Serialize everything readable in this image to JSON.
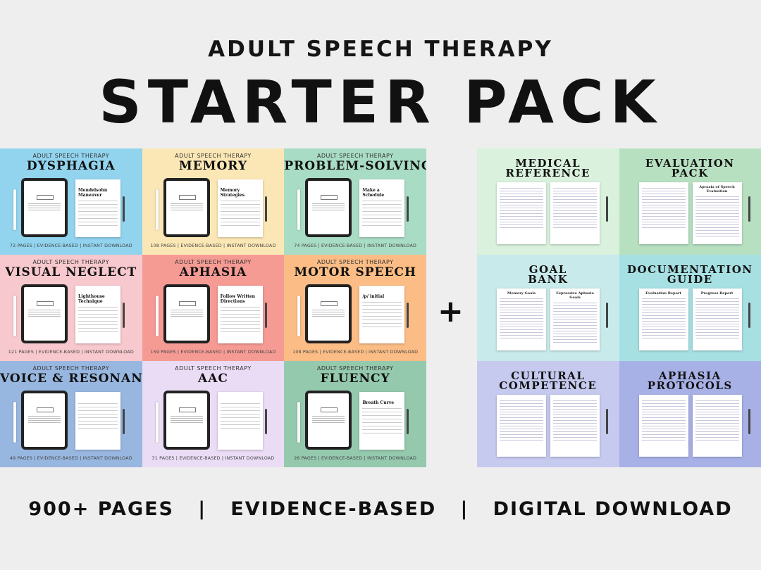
{
  "header": {
    "line1": "ADULT SPEECH THERAPY",
    "line2": "STARTER PACK"
  },
  "left_tiles": [
    {
      "subtitle": "ADULT SPEECH THERAPY",
      "title": "DYSPHAGIA",
      "doc_title": "Mendelsohn Maneuver",
      "footer": "72 PAGES  |  EVIDENCE-BASED  |  INSTANT DOWNLOAD",
      "color": "#92d3ee"
    },
    {
      "subtitle": "ADULT SPEECH THERAPY",
      "title": "MEMORY",
      "doc_title": "Memory Strategies",
      "footer": "108 PAGES  |  EVIDENCE-BASED  |  INSTANT DOWNLOAD",
      "color": "#fbe7b5"
    },
    {
      "subtitle": "ADULT SPEECH THERAPY",
      "title": "PROBLEM-SOLVING",
      "doc_title": "Make a Schedule",
      "footer": "74 PAGES  |  EVIDENCE-BASED  |  INSTANT DOWNLOAD",
      "color": "#a9dcc5"
    },
    {
      "subtitle": "ADULT SPEECH THERAPY",
      "title": "VISUAL NEGLECT",
      "doc_title": "Lighthouse Technique",
      "footer": "121 PAGES  |  EVIDENCE-BASED  |  INSTANT DOWNLOAD",
      "color": "#f7c8cd"
    },
    {
      "subtitle": "ADULT SPEECH THERAPY",
      "title": "APHASIA",
      "doc_title": "Follow Written Directions",
      "footer": "159 PAGES  |  EVIDENCE-BASED  |  INSTANT DOWNLOAD",
      "color": "#f59b94"
    },
    {
      "subtitle": "ADULT SPEECH THERAPY",
      "title": "MOTOR SPEECH",
      "doc_title": "/p/ initial",
      "footer": "108 PAGES  |  EVIDENCE-BASED  |  INSTANT DOWNLOAD",
      "color": "#fbbd85"
    },
    {
      "subtitle": "ADULT SPEECH THERAPY",
      "title": "VOICE & RESONANCE",
      "doc_title": "",
      "footer": "49 PAGES  |  EVIDENCE-BASED  |  INSTANT DOWNLOAD",
      "color": "#98b7e0"
    },
    {
      "subtitle": "ADULT SPEECH THERAPY",
      "title": "AAC",
      "doc_title": "",
      "footer": "31 PAGES  |  EVIDENCE-BASED  |  INSTANT DOWNLOAD",
      "color": "#eadcf5"
    },
    {
      "subtitle": "ADULT SPEECH THERAPY",
      "title": "FLUENCY",
      "doc_title": "Breath Curve",
      "footer": "26 PAGES  |  EVIDENCE-BASED  |  INSTANT DOWNLOAD",
      "color": "#95c9ae"
    }
  ],
  "plus": "+",
  "right_tiles": [
    {
      "title": "MEDICAL REFERENCE",
      "docs": [
        "",
        ""
      ],
      "color": "#d9f1dd"
    },
    {
      "title": "EVALUATION PACK",
      "docs": [
        "",
        "Apraxia of Speech Evaluation"
      ],
      "color": "#b7e0c1"
    },
    {
      "title": "GOAL BANK",
      "docs": [
        "Memory Goals",
        "Expressive Aphasia Goals"
      ],
      "color": "#c9eaeb"
    },
    {
      "title": "DOCUMENTATION GUIDE",
      "docs": [
        "Evaluation Report",
        "Progress Report"
      ],
      "color": "#a7e0e3"
    },
    {
      "title": "CULTURAL COMPETENCE",
      "docs": [
        "",
        ""
      ],
      "color": "#c6caef"
    },
    {
      "title": "APHASIA PROTOCOLS",
      "docs": [
        "",
        ""
      ],
      "color": "#a8b1e6"
    }
  ],
  "footer": "900+ PAGES   |   EVIDENCE-BASED   |   DIGITAL DOWNLOAD"
}
